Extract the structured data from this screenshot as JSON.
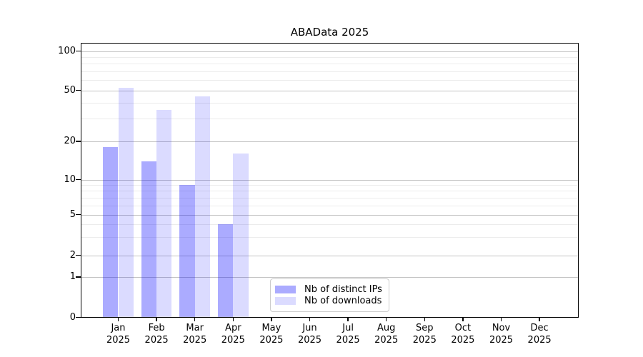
{
  "chart_data": {
    "type": "bar",
    "title": "ABAData 2025",
    "categories": [
      "Jan 2025",
      "Feb 2025",
      "Mar 2025",
      "Apr 2025",
      "May 2025",
      "Jun 2025",
      "Jul 2025",
      "Aug 2025",
      "Sep 2025",
      "Oct 2025",
      "Nov 2025",
      "Dec 2025"
    ],
    "series": [
      {
        "name": "Nb of distinct IPs",
        "color": "rgba(0,0,255,0.33)",
        "hex_on_white": "#abaaf9",
        "values": [
          18,
          14,
          9,
          4,
          0,
          0,
          0,
          0,
          0,
          0,
          0,
          0
        ]
      },
      {
        "name": "Nb of downloads",
        "color": "rgba(0,0,255,0.14)",
        "hex_on_white": "#dcdcfb",
        "values": [
          52,
          35,
          45,
          16,
          0,
          0,
          0,
          0,
          0,
          0,
          0,
          0
        ]
      }
    ],
    "y_axis": {
      "scale": "log-like (linear segment between 0 and 1)",
      "ticks": [
        0,
        1,
        2,
        5,
        10,
        20,
        50,
        100
      ],
      "minor_ticks": [
        3,
        4,
        6,
        7,
        8,
        9,
        30,
        40,
        60,
        70,
        80,
        90
      ],
      "range": [
        0,
        115
      ]
    },
    "grid": {
      "horizontal": true,
      "major_color": "#c3c3c3",
      "minor_color": "#ececec"
    },
    "legend": {
      "position": "bottom-center-inside",
      "items": [
        "Nb of distinct IPs",
        "Nb of downloads"
      ]
    }
  }
}
